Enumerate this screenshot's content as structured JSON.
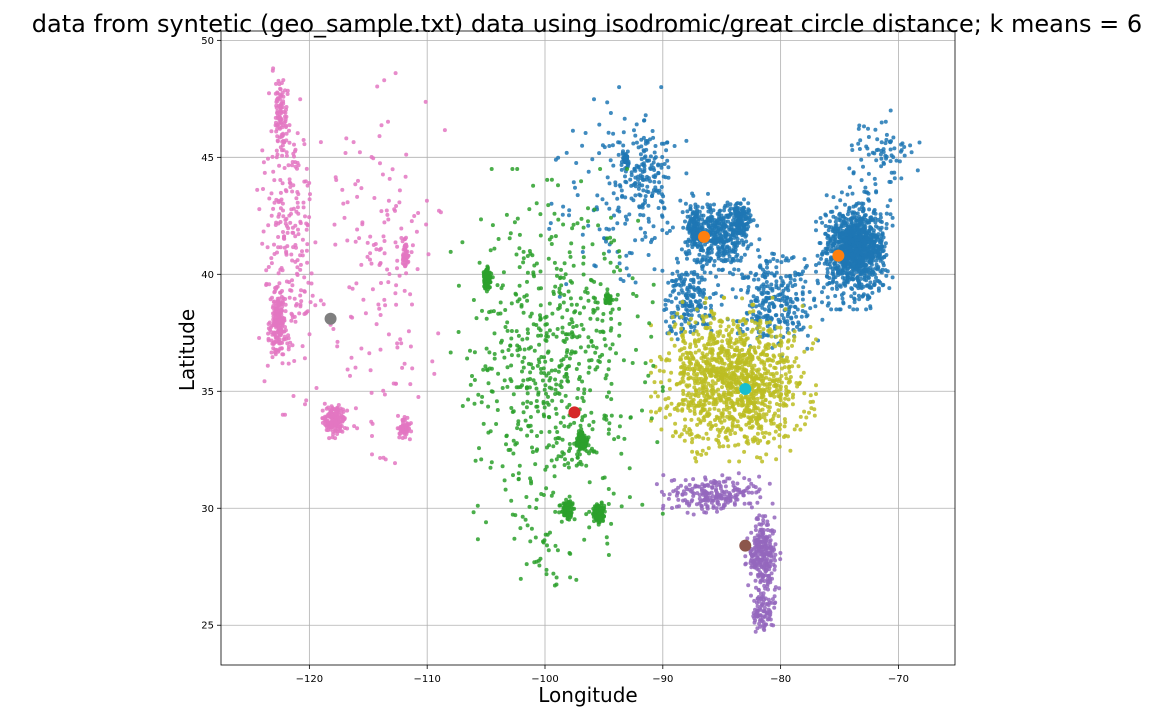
{
  "chart_data": {
    "type": "scatter",
    "title": "data from syntetic (geo_sample.txt) data using isodromic/great circle distance; k means = 6",
    "xlabel": "Longitude",
    "ylabel": "Latitude",
    "xlim": [
      -127.5,
      -65.2
    ],
    "ylim": [
      23.3,
      50.4
    ],
    "xticks": [
      -120,
      -110,
      -100,
      -90,
      -80,
      -70
    ],
    "xtick_labels": [
      "−120",
      "−110",
      "−100",
      "−90",
      "−80",
      "−70"
    ],
    "yticks": [
      25,
      30,
      35,
      40,
      45,
      50
    ],
    "ytick_labels": [
      "25",
      "30",
      "35",
      "40",
      "45",
      "50"
    ],
    "grid": true,
    "series": [
      {
        "color": "#1f77b4",
        "regions": [
          {
            "x": [
              -77,
              -70.5
            ],
            "y": [
              38.5,
              43.5
            ],
            "n": 700
          },
          {
            "x": [
              -76,
              -71
            ],
            "y": [
              40,
              42.5
            ],
            "n": 450
          },
          {
            "x": [
              -75,
              -68
            ],
            "y": [
              43,
              47
            ],
            "n": 80
          },
          {
            "x": [
              -88.5,
              -82
            ],
            "y": [
              40,
              43.5
            ],
            "n": 380
          },
          {
            "x": [
              -88,
              -86.5
            ],
            "y": [
              41,
              43
            ],
            "n": 120
          },
          {
            "x": [
              -84.5,
              -82.5
            ],
            "y": [
              41.5,
              43.2
            ],
            "n": 120
          },
          {
            "x": [
              -85,
              -76
            ],
            "y": [
              36.5,
              41.5
            ],
            "n": 280
          },
          {
            "x": [
              -90.5,
              -85
            ],
            "y": [
              37,
              41
            ],
            "n": 180
          },
          {
            "x": [
              -94,
              -89
            ],
            "y": [
              42,
              46.8
            ],
            "n": 140
          },
          {
            "x": [
              -93.5,
              -92.8
            ],
            "y": [
              44.5,
              45.3
            ],
            "n": 40
          },
          {
            "x": [
              -100,
              -88
            ],
            "y": [
              38.5,
              48
            ],
            "n": 130
          }
        ]
      },
      {
        "color": "#bcbd22",
        "regions": [
          {
            "x": [
              -91,
              -77
            ],
            "y": [
              32,
              39
            ],
            "n": 1200
          }
        ]
      },
      {
        "color": "#9467bd",
        "regions": [
          {
            "x": [
              -90.5,
              -80.5
            ],
            "y": [
              29.7,
              31.5
            ],
            "n": 220
          },
          {
            "x": [
              -83,
              -80
            ],
            "y": [
              26,
              30
            ],
            "n": 260
          },
          {
            "x": [
              -82.5,
              -80.3
            ],
            "y": [
              24.7,
              26.5
            ],
            "n": 80
          }
        ]
      },
      {
        "color": "#2ca02c",
        "regions": [
          {
            "x": [
              -97.5,
              -96.3
            ],
            "y": [
              32.3,
              33.3
            ],
            "n": 140
          },
          {
            "x": [
              -96,
              -94.8
            ],
            "y": [
              29.3,
              30.3
            ],
            "n": 120
          },
          {
            "x": [
              -98.8,
              -97.4
            ],
            "y": [
              29.3,
              30.5
            ],
            "n": 70
          },
          {
            "x": [
              -105.3,
              -104.5
            ],
            "y": [
              39.2,
              40.4
            ],
            "n": 90
          },
          {
            "x": [
              -95,
              -94.2
            ],
            "y": [
              38.7,
              39.2
            ],
            "n": 40
          },
          {
            "x": [
              -108,
              -90
            ],
            "y": [
              28,
              44.5
            ],
            "n": 650
          },
          {
            "x": [
              -103,
              -96
            ],
            "y": [
              25.9,
              30
            ],
            "n": 30
          }
        ]
      },
      {
        "color": "#e377c2",
        "regions": [
          {
            "x": [
              -123.5,
              -121.8
            ],
            "y": [
              36.5,
              39.5
            ],
            "n": 170
          },
          {
            "x": [
              -119,
              -116.8
            ],
            "y": [
              33,
              34.5
            ],
            "n": 170
          },
          {
            "x": [
              -123,
              -121.8
            ],
            "y": [
              45,
              48.5
            ],
            "n": 90
          },
          {
            "x": [
              -124.5,
              -119
            ],
            "y": [
              34,
              48.8
            ],
            "n": 260
          },
          {
            "x": [
              -112.5,
              -111.3
            ],
            "y": [
              32.8,
              34
            ],
            "n": 60
          },
          {
            "x": [
              -112.2,
              -111.5
            ],
            "y": [
              40,
              41.8
            ],
            "n": 50
          },
          {
            "x": [
              -119.5,
              -108.5
            ],
            "y": [
              31.2,
              48.6
            ],
            "n": 160
          }
        ]
      }
    ],
    "centroids": [
      {
        "x": -86.5,
        "y": 41.6,
        "color": "#ff7f0e"
      },
      {
        "x": -75.1,
        "y": 40.8,
        "color": "#ff7f0e"
      },
      {
        "x": -118.2,
        "y": 38.1,
        "color": "#7f7f7f"
      },
      {
        "x": -97.5,
        "y": 34.1,
        "color": "#d62728"
      },
      {
        "x": -83.0,
        "y": 35.1,
        "color": "#17becf"
      },
      {
        "x": -83.0,
        "y": 28.4,
        "color": "#8c564b"
      }
    ]
  }
}
